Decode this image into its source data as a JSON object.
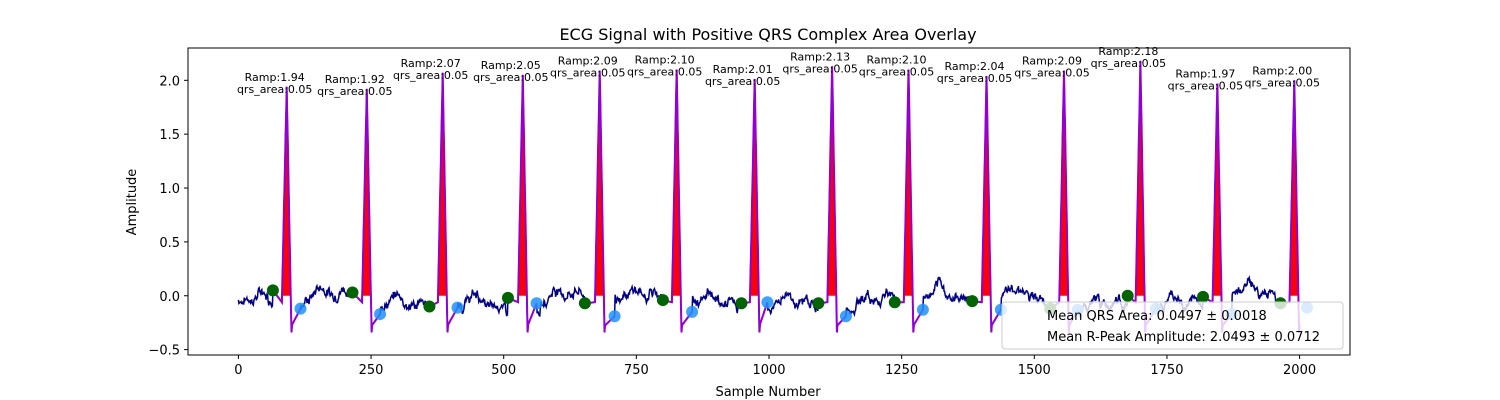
{
  "chart_data": {
    "type": "line",
    "title": "ECG Signal with Positive QRS Complex Area Overlay",
    "xlabel": "Sample Number",
    "ylabel": "Amplitude",
    "xlim": [
      -95,
      2095
    ],
    "ylim": [
      -0.55,
      2.3
    ],
    "xticks": [
      0,
      250,
      500,
      750,
      1000,
      1250,
      1500,
      1750,
      2000
    ],
    "yticks": [
      -0.5,
      0.0,
      0.5,
      1.0,
      1.5,
      2.0
    ],
    "xtick_labels": [
      "0",
      "250",
      "500",
      "750",
      "1000",
      "1250",
      "1500",
      "1750",
      "2000"
    ],
    "ytick_labels": [
      "−0.5",
      "0.0",
      "0.5",
      "1.0",
      "1.5",
      "2.0"
    ],
    "grid": false,
    "legend": {
      "placement": "lower-right",
      "entries": [
        "Mean QRS Area: 0.0497 ± 0.0018",
        "Mean R-Peak Amplitude: 2.0493 ± 0.0712"
      ]
    },
    "colors": {
      "signal": "#00008b",
      "qrs_segment": "#9400d3",
      "qrs_fill": "#ff0000",
      "q_marker": "#006400",
      "s_marker": "#1e90ff"
    },
    "beats": [
      {
        "r_x": 91,
        "r_amp": 1.94,
        "label_ramp": "Ramp:1.94",
        "label_area": "qrs_area:0.05",
        "q_x": 65,
        "q_y": 0.05,
        "s_x": 117,
        "s_y": -0.12
      },
      {
        "r_x": 242,
        "r_amp": 1.92,
        "label_ramp": "Ramp:1.92",
        "label_area": "qrs_area:0.05",
        "q_x": 215,
        "q_y": 0.03,
        "s_x": 267,
        "s_y": -0.17
      },
      {
        "r_x": 385,
        "r_amp": 2.07,
        "label_ramp": "Ramp:2.07",
        "label_area": "qrs_area:0.05",
        "q_x": 360,
        "q_y": -0.1,
        "s_x": 413,
        "s_y": -0.11
      },
      {
        "r_x": 536,
        "r_amp": 2.05,
        "label_ramp": "Ramp:2.05",
        "label_area": "qrs_area:0.05",
        "q_x": 508,
        "q_y": -0.02,
        "s_x": 562,
        "s_y": -0.07
      },
      {
        "r_x": 681,
        "r_amp": 2.09,
        "label_ramp": "Ramp:2.09",
        "label_area": "qrs_area:0.05",
        "q_x": 653,
        "q_y": -0.07,
        "s_x": 709,
        "s_y": -0.19
      },
      {
        "r_x": 826,
        "r_amp": 2.1,
        "label_ramp": "Ramp:2.10",
        "label_area": "qrs_area:0.05",
        "q_x": 800,
        "q_y": -0.04,
        "s_x": 855,
        "s_y": -0.15
      },
      {
        "r_x": 973,
        "r_amp": 2.01,
        "label_ramp": "Ramp:2.01",
        "label_area": "qrs_area:0.05",
        "q_x": 948,
        "q_y": -0.07,
        "s_x": 997,
        "s_y": -0.06
      },
      {
        "r_x": 1119,
        "r_amp": 2.13,
        "label_ramp": "Ramp:2.13",
        "label_area": "qrs_area:0.05",
        "q_x": 1093,
        "q_y": -0.07,
        "s_x": 1145,
        "s_y": -0.19
      },
      {
        "r_x": 1263,
        "r_amp": 2.1,
        "label_ramp": "Ramp:2.10",
        "label_area": "qrs_area:0.05",
        "q_x": 1237,
        "q_y": -0.06,
        "s_x": 1290,
        "s_y": -0.13
      },
      {
        "r_x": 1410,
        "r_amp": 2.04,
        "label_ramp": "Ramp:2.04",
        "label_area": "qrs_area:0.05",
        "q_x": 1383,
        "q_y": -0.05,
        "s_x": 1437,
        "s_y": -0.13
      },
      {
        "r_x": 1556,
        "r_amp": 2.09,
        "label_ramp": "Ramp:2.09",
        "label_area": "qrs_area:0.05",
        "q_x": 1530,
        "q_y": -0.12,
        "s_x": 1582,
        "s_y": -0.13
      },
      {
        "r_x": 1700,
        "r_amp": 2.18,
        "label_ramp": "Ramp:2.18",
        "label_area": "qrs_area:0.05",
        "q_x": 1676,
        "q_y": 0.0,
        "s_x": 1729,
        "s_y": -0.12
      },
      {
        "r_x": 1845,
        "r_amp": 1.97,
        "label_ramp": "Ramp:1.97",
        "label_area": "qrs_area:0.05",
        "q_x": 1818,
        "q_y": -0.01,
        "s_x": 1872,
        "s_y": -0.17
      },
      {
        "r_x": 1990,
        "r_amp": 2.0,
        "label_ramp": "Ramp:2.00",
        "label_area": "qrs_area:0.05",
        "q_x": 1964,
        "q_y": -0.07,
        "s_x": 2014,
        "s_y": -0.11
      }
    ]
  }
}
